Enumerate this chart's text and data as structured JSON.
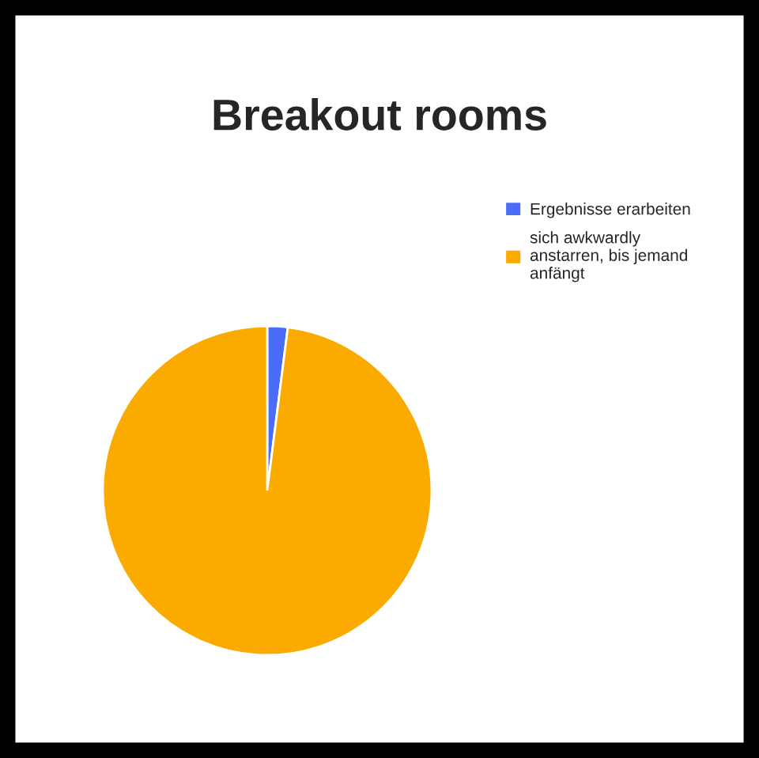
{
  "chart_data": {
    "type": "pie",
    "title": "Breakout rooms",
    "categories": [
      "Ergebnisse erarbeiten",
      "sich awkwardly anstarren, bis jemand anfängt"
    ],
    "values": [
      2,
      98
    ],
    "colors": [
      "#4a6cf7",
      "#fbab00"
    ],
    "legend": "top right"
  }
}
